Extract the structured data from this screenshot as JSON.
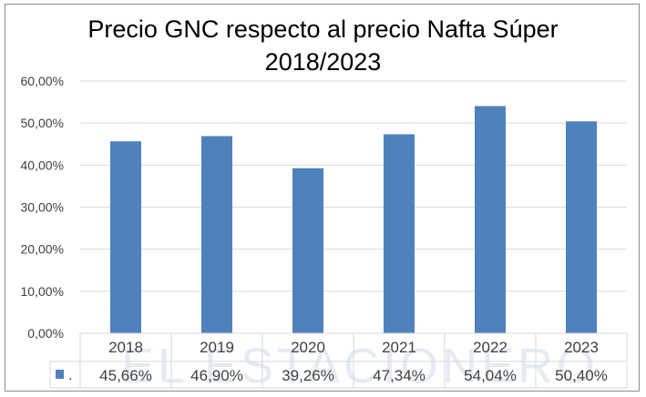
{
  "chart_data": {
    "type": "bar",
    "title_line1": "Precio GNC respecto al precio Nafta Súper",
    "title_line2": "2018/2023",
    "categories": [
      "2018",
      "2019",
      "2020",
      "2021",
      "2022",
      "2023"
    ],
    "series": [
      {
        "name": ".",
        "values": [
          45.66,
          46.9,
          39.26,
          47.34,
          54.04,
          50.4
        ],
        "labels": [
          "45,66%",
          "46,90%",
          "39,26%",
          "47,34%",
          "54,04%",
          "50,40%"
        ],
        "color": "#4f81bd"
      }
    ],
    "yticks": [
      "0,00%",
      "10,00%",
      "20,00%",
      "30,00%",
      "40,00%",
      "50,00%",
      "60,00%"
    ],
    "ylim": [
      0,
      60
    ],
    "grid": true,
    "data_table": true,
    "xlabel": "",
    "ylabel": ""
  },
  "watermark": "EL ESTACIONERO"
}
